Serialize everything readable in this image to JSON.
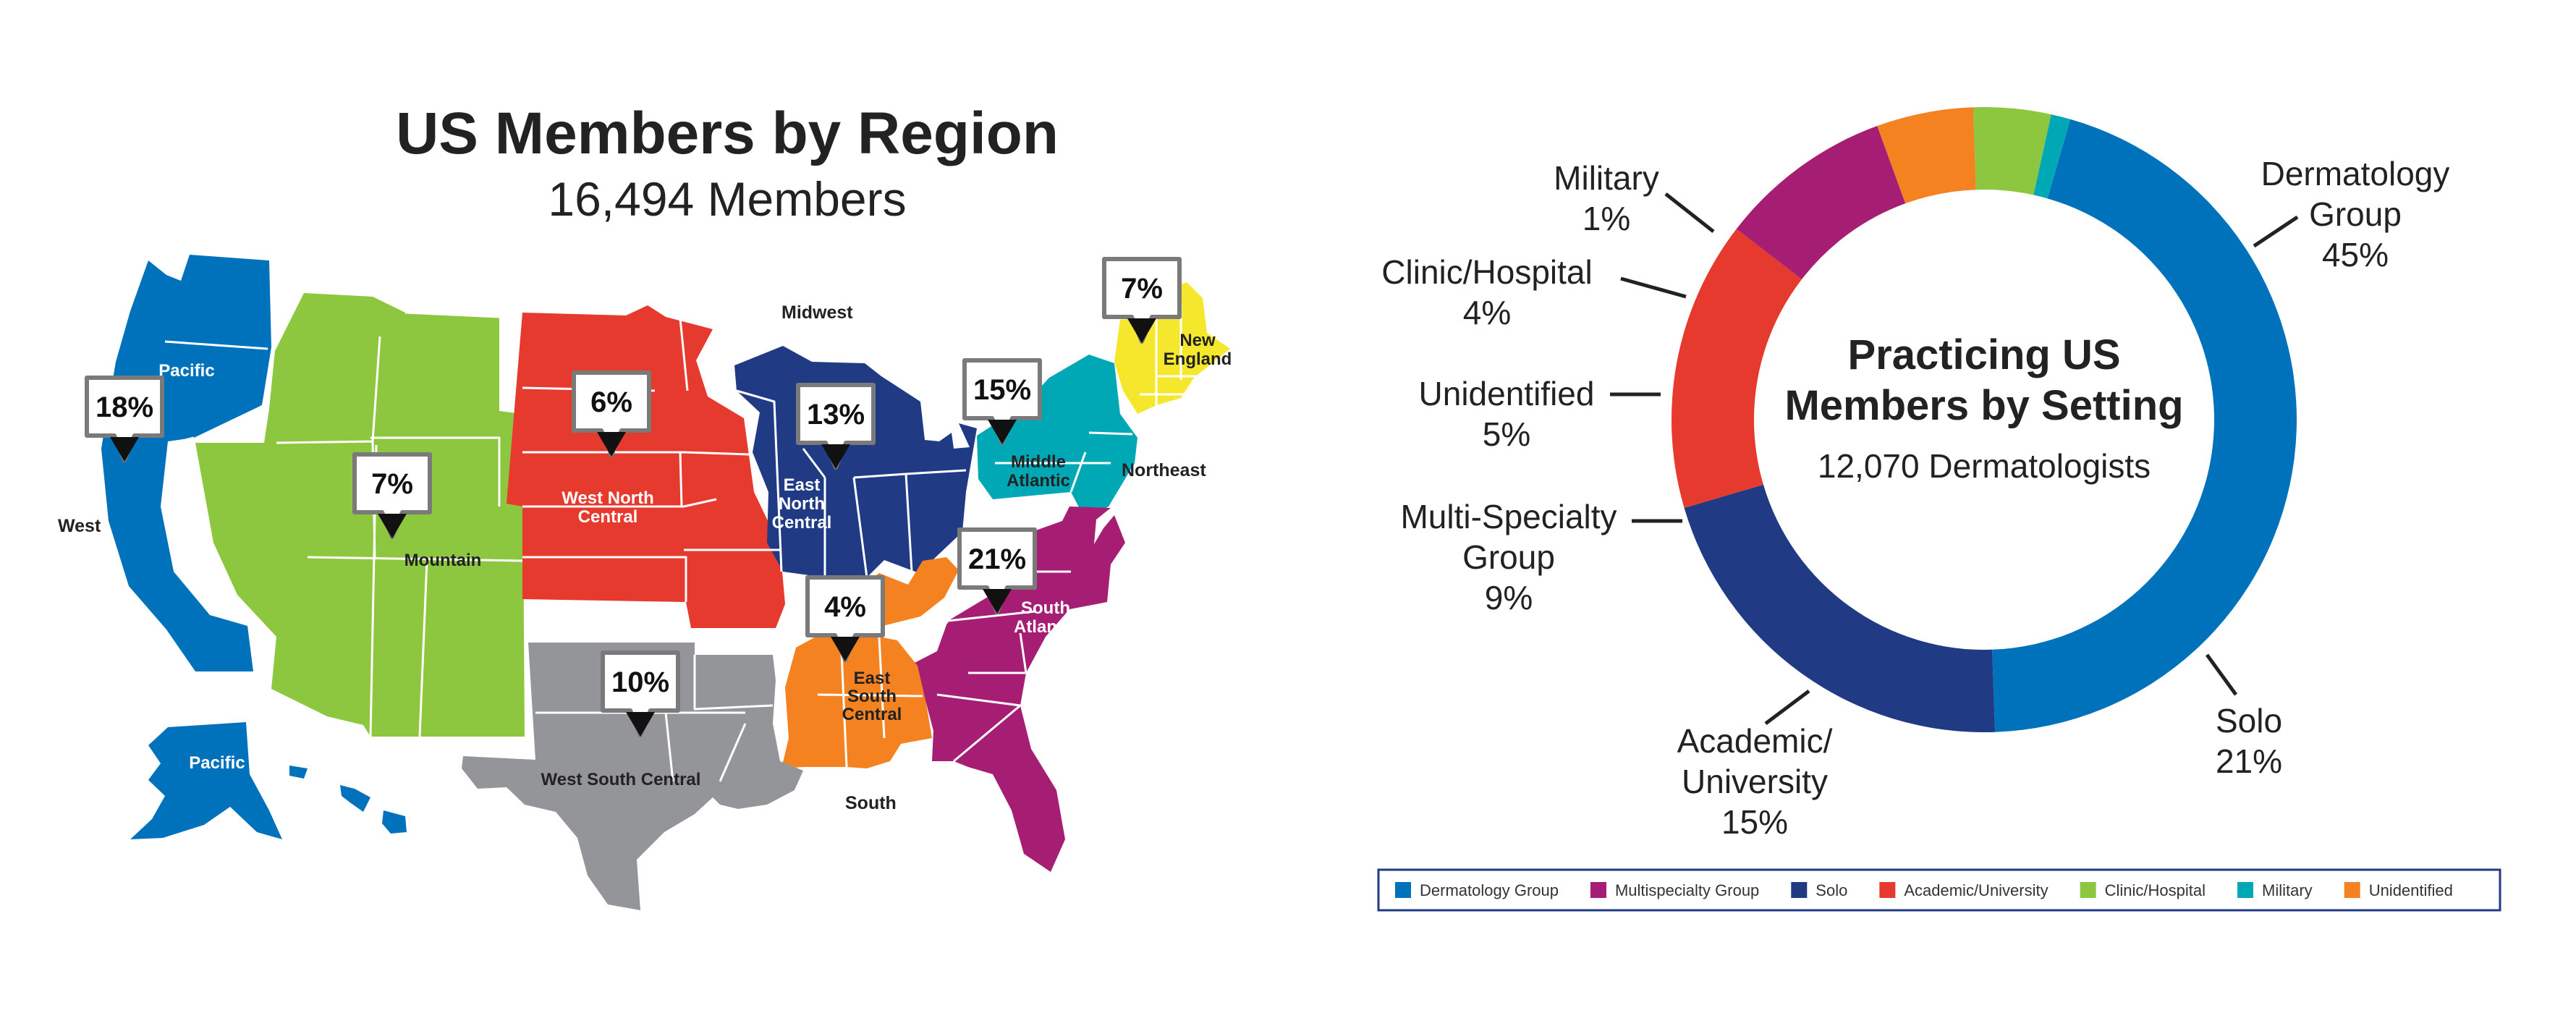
{
  "map": {
    "title": "US Members by Region",
    "subtitle": "16,494 Members",
    "outside_labels": {
      "west": "West",
      "midwest": "Midwest",
      "northeast": "Northeast",
      "south": "South"
    },
    "regions": [
      {
        "id": "pacific",
        "lines": [
          "Pacific"
        ],
        "pct": "18%",
        "color": "#0072bc"
      },
      {
        "id": "pacific-ak",
        "lines": [
          "Pacific"
        ],
        "color": "#0072bc"
      },
      {
        "id": "mountain",
        "lines": [
          "Mountain"
        ],
        "pct": "7%",
        "color": "#8dc63f"
      },
      {
        "id": "west-north-central",
        "lines": [
          "West North",
          "Central"
        ],
        "pct": "6%",
        "color": "#e63a2f"
      },
      {
        "id": "east-north-central",
        "lines": [
          "East",
          "North",
          "Central"
        ],
        "pct": "13%",
        "color": "#203a84"
      },
      {
        "id": "middle-atlantic",
        "lines": [
          "Middle",
          "Atlantic"
        ],
        "pct": "15%",
        "color": "#00a8b5"
      },
      {
        "id": "new-england",
        "lines": [
          "New",
          "England"
        ],
        "pct": "7%",
        "color": "#f5e82c"
      },
      {
        "id": "south-atlantic",
        "lines": [
          "South",
          "Atlantic"
        ],
        "pct": "21%",
        "color": "#a51e74"
      },
      {
        "id": "east-south-central",
        "lines": [
          "East",
          "South",
          "Central"
        ],
        "pct": "4%",
        "color": "#f58220"
      },
      {
        "id": "west-south-central",
        "lines": [
          "West South Central"
        ],
        "pct": "10%",
        "color": "#939598"
      }
    ]
  },
  "donut": {
    "center_title_lines": [
      "Practicing US",
      "Members by Setting"
    ],
    "center_subtitle": "12,070 Dermatologists",
    "slice_labels": [
      {
        "name": "Dermatology Group",
        "lines": [
          "Dermatology",
          "Group"
        ],
        "pct": "45%"
      },
      {
        "name": "Solo",
        "lines": [
          "Solo"
        ],
        "pct": "21%"
      },
      {
        "name": "Academic/University",
        "lines": [
          "Academic/",
          "University"
        ],
        "pct": "15%"
      },
      {
        "name": "Multi-Specialty Group",
        "lines": [
          "Multi-Specialty",
          "Group"
        ],
        "pct": "9%"
      },
      {
        "name": "Unidentified",
        "lines": [
          "Unidentified"
        ],
        "pct": "5%"
      },
      {
        "name": "Clinic/Hospital",
        "lines": [
          "Clinic/Hospital"
        ],
        "pct": "4%"
      },
      {
        "name": "Military",
        "lines": [
          "Military"
        ],
        "pct": "1%"
      }
    ]
  },
  "legend": [
    {
      "label": "Dermatology Group",
      "color": "#0072bc"
    },
    {
      "label": "Multispecialty Group",
      "color": "#a51e74"
    },
    {
      "label": "Solo",
      "color": "#203a84"
    },
    {
      "label": "Academic/University",
      "color": "#e63a2f"
    },
    {
      "label": "Clinic/Hospital",
      "color": "#8dc63f"
    },
    {
      "label": "Military",
      "color": "#00a8b5"
    },
    {
      "label": "Unidentified",
      "color": "#f58220"
    }
  ],
  "chart_data": [
    {
      "type": "map",
      "title": "US Members by Region",
      "subtitle": "16,494 Members",
      "categories": [
        "Pacific",
        "Mountain",
        "West North Central",
        "East North Central",
        "Middle Atlantic",
        "New England",
        "South Atlantic",
        "East South Central",
        "West South Central"
      ],
      "values": [
        18,
        7,
        6,
        13,
        15,
        7,
        21,
        4,
        10
      ],
      "unit": "%"
    },
    {
      "type": "pie",
      "donut": true,
      "title": "Practicing US Members by Setting",
      "subtitle": "12,070 Dermatologists",
      "categories": [
        "Dermatology Group",
        "Solo",
        "Academic/University",
        "Multi-Specialty Group",
        "Unidentified",
        "Clinic/Hospital",
        "Military"
      ],
      "values": [
        45,
        21,
        15,
        9,
        5,
        4,
        1
      ],
      "colors": [
        "#0072bc",
        "#203a84",
        "#e63a2f",
        "#a51e74",
        "#f58220",
        "#8dc63f",
        "#00a8b5"
      ],
      "unit": "%",
      "legend_position": "bottom"
    }
  ]
}
